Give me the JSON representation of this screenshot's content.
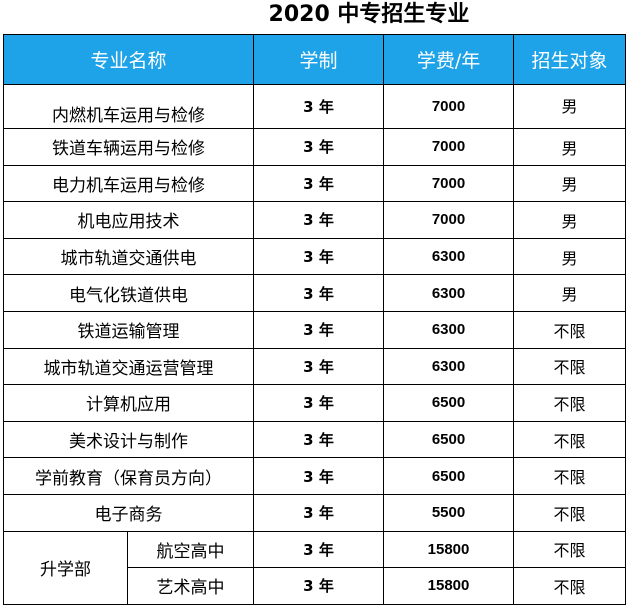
{
  "title": "2020 中专招生专业",
  "headers": {
    "major": "专业名称",
    "duration": "学制",
    "fee": "学费/年",
    "target": "招生对象"
  },
  "rows": [
    {
      "name": "内燃机车运用与检修",
      "duration": "3 年",
      "fee": "7000",
      "target": "男"
    },
    {
      "name": "铁道车辆运用与检修",
      "duration": "3 年",
      "fee": "7000",
      "target": "男"
    },
    {
      "name": "电力机车运用与检修",
      "duration": "3 年",
      "fee": "7000",
      "target": "男"
    },
    {
      "name": "机电应用技术",
      "duration": "3 年",
      "fee": "7000",
      "target": "男"
    },
    {
      "name": "城市轨道交通供电",
      "duration": "3 年",
      "fee": "6300",
      "target": "男"
    },
    {
      "name": "电气化铁道供电",
      "duration": "3 年",
      "fee": "6300",
      "target": "男"
    },
    {
      "name": "铁道运输管理",
      "duration": "3 年",
      "fee": "6300",
      "target": "不限"
    },
    {
      "name": "城市轨道交通运营管理",
      "duration": "3 年",
      "fee": "6300",
      "target": "不限"
    },
    {
      "name": "计算机应用",
      "duration": "3 年",
      "fee": "6500",
      "target": "不限"
    },
    {
      "name": "美术设计与制作",
      "duration": "3 年",
      "fee": "6500",
      "target": "不限"
    },
    {
      "name": "学前教育（保育员方向）",
      "duration": "3 年",
      "fee": "6500",
      "target": "不限"
    },
    {
      "name": "电子商务",
      "duration": "3 年",
      "fee": "5500",
      "target": "不限"
    }
  ],
  "upgrade_section": {
    "department": "升学部",
    "rows": [
      {
        "name": "航空高中",
        "duration": "3 年",
        "fee": "15800",
        "target": "不限"
      },
      {
        "name": "艺术高中",
        "duration": "3 年",
        "fee": "15800",
        "target": "不限"
      }
    ]
  },
  "colors": {
    "header_background": "#1fa3e8",
    "header_text": "#ffffff",
    "border": "#000000"
  }
}
